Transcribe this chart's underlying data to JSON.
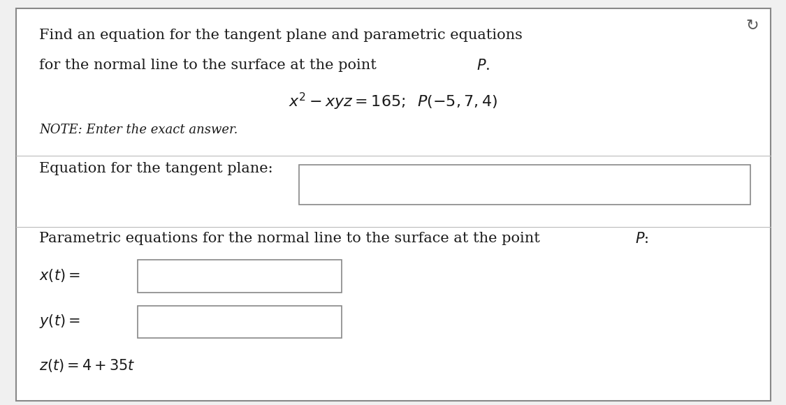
{
  "bg_color": "#f0f0f0",
  "panel_color": "#ffffff",
  "title_line1": "Find an equation for the tangent plane and parametric equations",
  "title_line2": "for the normal line to the surface at the point ",
  "equation_line": "$x^2 - xyz = 165;\\;\\; P(-5, 7, 4)$",
  "note_line": "NOTE: Enter the exact answer.",
  "tangent_label": "Equation for the tangent plane:",
  "parametric_label": "Parametric equations for the normal line to the surface at the point ",
  "xt_label": "$x(t) =$",
  "yt_label": "$y(t) =$",
  "zt_label": "$z(t) = 4 + 35t$",
  "font_size_main": 15,
  "font_size_note": 13,
  "text_color": "#1a1a1a",
  "box_fill": "#ffffff",
  "box_edge": "#888888"
}
